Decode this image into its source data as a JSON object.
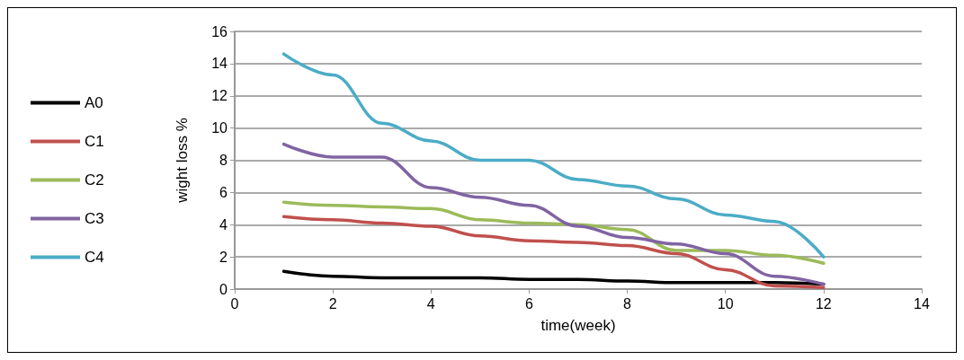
{
  "chart_data": {
    "type": "line",
    "xlabel": "time(week)",
    "ylabel": "wight loss %",
    "x": [
      1,
      2,
      3,
      4,
      5,
      6,
      7,
      8,
      9,
      10,
      11,
      12
    ],
    "series": [
      {
        "name": "A0",
        "color": "#000000",
        "values": [
          1.1,
          0.8,
          0.7,
          0.7,
          0.7,
          0.6,
          0.6,
          0.5,
          0.4,
          0.4,
          0.4,
          0.3
        ]
      },
      {
        "name": "C1",
        "color": "#c0504d",
        "values": [
          4.5,
          4.3,
          4.1,
          3.9,
          3.3,
          3.0,
          2.9,
          2.7,
          2.2,
          1.2,
          0.2,
          0.1
        ]
      },
      {
        "name": "C2",
        "color": "#9bbb59",
        "values": [
          5.4,
          5.2,
          5.1,
          5.0,
          4.3,
          4.1,
          4.0,
          3.7,
          2.4,
          2.4,
          2.1,
          1.6
        ]
      },
      {
        "name": "C3",
        "color": "#8064a2",
        "values": [
          9.0,
          8.2,
          8.2,
          6.3,
          5.7,
          5.2,
          3.9,
          3.2,
          2.8,
          2.2,
          0.8,
          0.3
        ]
      },
      {
        "name": "C4",
        "color": "#4bacc6",
        "values": [
          14.6,
          13.3,
          10.3,
          9.2,
          8.0,
          8.0,
          6.8,
          6.4,
          5.6,
          4.6,
          4.2,
          2.0
        ]
      }
    ],
    "xlim": [
      0,
      14
    ],
    "xticks": [
      0,
      2,
      4,
      6,
      8,
      10,
      12,
      14
    ],
    "ylim": [
      0,
      16
    ],
    "yticks": [
      0,
      2,
      4,
      6,
      8,
      10,
      12,
      14,
      16
    ],
    "grid": "y",
    "legend": "left",
    "marker": "none",
    "line_style": "solid"
  }
}
